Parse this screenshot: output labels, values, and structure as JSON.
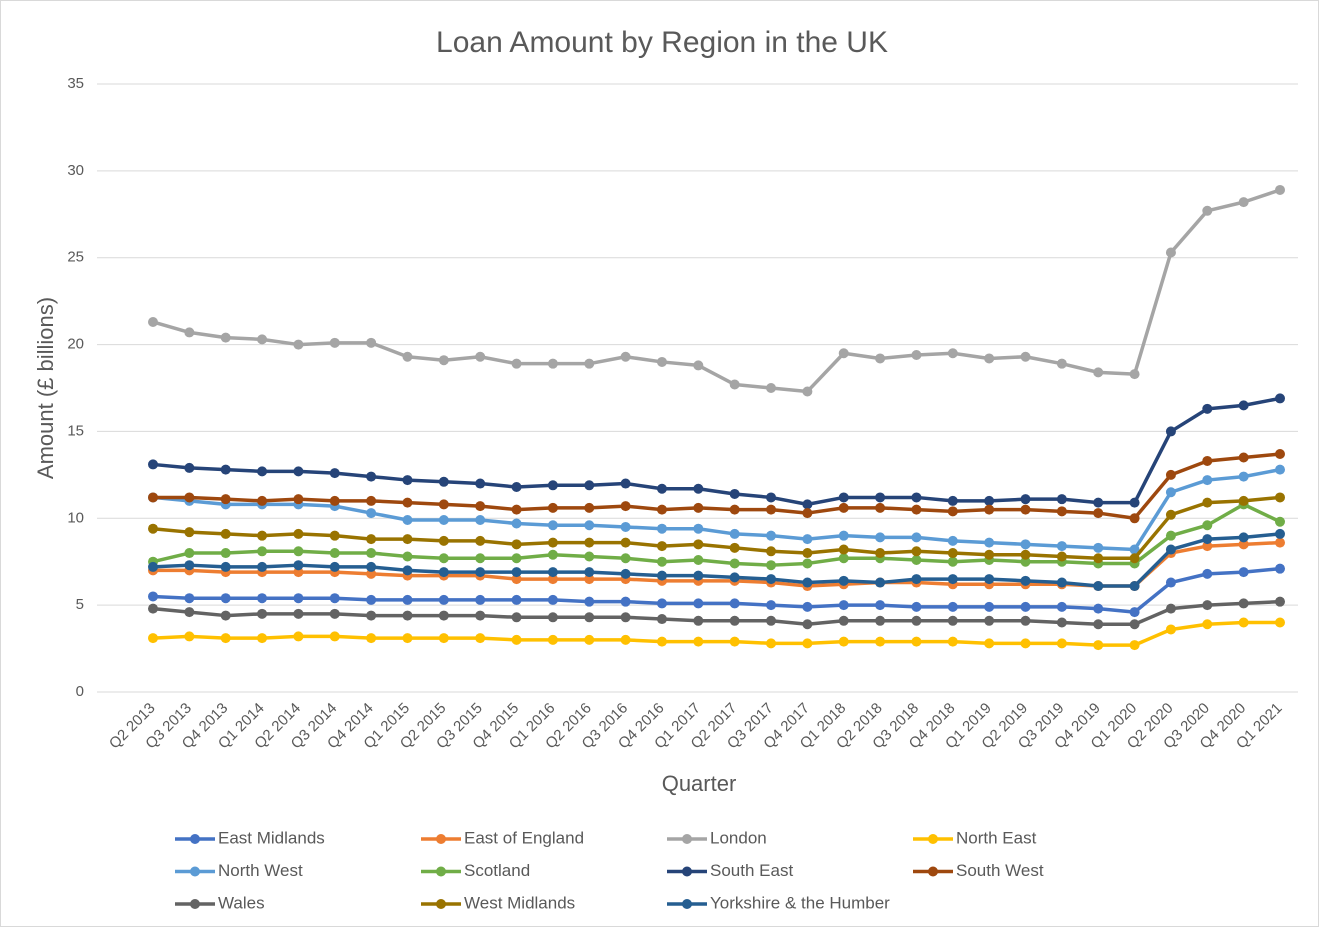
{
  "chart_data": {
    "type": "line",
    "title": "Loan Amount by Region in the UK",
    "x_label": "Quarter",
    "y_label": "Amount (£ billions)",
    "categories": [
      "Q2 2013",
      "Q3 2013",
      "Q4 2013",
      "Q1 2014",
      "Q2 2014",
      "Q3 2014",
      "Q4 2014",
      "Q1 2015",
      "Q2 2015",
      "Q3 2015",
      "Q4 2015",
      "Q1 2016",
      "Q2 2016",
      "Q3 2016",
      "Q4 2016",
      "Q1 2017",
      "Q2 2017",
      "Q3 2017",
      "Q4 2017",
      "Q1 2018",
      "Q2 2018",
      "Q3 2018",
      "Q4 2018",
      "Q1 2019",
      "Q2 2019",
      "Q3 2019",
      "Q4 2019",
      "Q1 2020",
      "Q2 2020",
      "Q3 2020",
      "Q4 2020",
      "Q1 2021"
    ],
    "ylim": [
      0,
      35
    ],
    "yticks": [
      0,
      5,
      10,
      15,
      20,
      25,
      30,
      35
    ],
    "grid": true,
    "legend": "bottom",
    "series": [
      {
        "name": "East Midlands",
        "color": "#4472c4",
        "values": [
          5.5,
          5.4,
          5.4,
          5.4,
          5.4,
          5.4,
          5.3,
          5.3,
          5.3,
          5.3,
          5.3,
          5.3,
          5.2,
          5.2,
          5.1,
          5.1,
          5.1,
          5.0,
          4.9,
          5.0,
          5.0,
          4.9,
          4.9,
          4.9,
          4.9,
          4.9,
          4.8,
          4.6,
          6.3,
          6.8,
          6.9,
          7.1
        ]
      },
      {
        "name": "East of England",
        "color": "#ed7d31",
        "values": [
          7.0,
          7.0,
          6.9,
          6.9,
          6.9,
          6.9,
          6.8,
          6.7,
          6.7,
          6.7,
          6.5,
          6.5,
          6.5,
          6.5,
          6.4,
          6.4,
          6.4,
          6.3,
          6.1,
          6.2,
          6.3,
          6.3,
          6.2,
          6.2,
          6.2,
          6.2,
          6.1,
          6.1,
          8.0,
          8.4,
          8.5,
          8.6
        ]
      },
      {
        "name": "London",
        "color": "#a5a5a5",
        "values": [
          21.3,
          20.7,
          20.4,
          20.3,
          20.0,
          20.1,
          20.1,
          19.3,
          19.1,
          19.3,
          18.9,
          18.9,
          18.9,
          19.3,
          19.0,
          18.8,
          17.7,
          17.5,
          17.3,
          19.5,
          19.2,
          19.4,
          19.5,
          19.2,
          19.3,
          18.9,
          18.4,
          18.3,
          25.3,
          27.7,
          28.2,
          28.9
        ]
      },
      {
        "name": "North East",
        "color": "#ffc000",
        "values": [
          3.1,
          3.2,
          3.1,
          3.1,
          3.2,
          3.2,
          3.1,
          3.1,
          3.1,
          3.1,
          3.0,
          3.0,
          3.0,
          3.0,
          2.9,
          2.9,
          2.9,
          2.8,
          2.8,
          2.9,
          2.9,
          2.9,
          2.9,
          2.8,
          2.8,
          2.8,
          2.7,
          2.7,
          3.6,
          3.9,
          4.0,
          4.0
        ]
      },
      {
        "name": "North West",
        "color": "#5b9bd5",
        "values": [
          11.2,
          11.0,
          10.8,
          10.8,
          10.8,
          10.7,
          10.3,
          9.9,
          9.9,
          9.9,
          9.7,
          9.6,
          9.6,
          9.5,
          9.4,
          9.4,
          9.1,
          9.0,
          8.8,
          9.0,
          8.9,
          8.9,
          8.7,
          8.6,
          8.5,
          8.4,
          8.3,
          8.2,
          11.5,
          12.2,
          12.4,
          12.8
        ]
      },
      {
        "name": "Scotland",
        "color": "#70ad47",
        "values": [
          7.5,
          8.0,
          8.0,
          8.1,
          8.1,
          8.0,
          8.0,
          7.8,
          7.7,
          7.7,
          7.7,
          7.9,
          7.8,
          7.7,
          7.5,
          7.6,
          7.4,
          7.3,
          7.4,
          7.7,
          7.7,
          7.6,
          7.5,
          7.6,
          7.5,
          7.5,
          7.4,
          7.4,
          9.0,
          9.6,
          10.8,
          9.8
        ]
      },
      {
        "name": "South East",
        "color": "#264478",
        "values": [
          13.1,
          12.9,
          12.8,
          12.7,
          12.7,
          12.6,
          12.4,
          12.2,
          12.1,
          12.0,
          11.8,
          11.9,
          11.9,
          12.0,
          11.7,
          11.7,
          11.4,
          11.2,
          10.8,
          11.2,
          11.2,
          11.2,
          11.0,
          11.0,
          11.1,
          11.1,
          10.9,
          10.9,
          15.0,
          16.3,
          16.5,
          16.9
        ]
      },
      {
        "name": "South West",
        "color": "#9e480e",
        "values": [
          11.2,
          11.2,
          11.1,
          11.0,
          11.1,
          11.0,
          11.0,
          10.9,
          10.8,
          10.7,
          10.5,
          10.6,
          10.6,
          10.7,
          10.5,
          10.6,
          10.5,
          10.5,
          10.3,
          10.6,
          10.6,
          10.5,
          10.4,
          10.5,
          10.5,
          10.4,
          10.3,
          10.0,
          12.5,
          13.3,
          13.5,
          13.7
        ]
      },
      {
        "name": "Wales",
        "color": "#636363",
        "values": [
          4.8,
          4.6,
          4.4,
          4.5,
          4.5,
          4.5,
          4.4,
          4.4,
          4.4,
          4.4,
          4.3,
          4.3,
          4.3,
          4.3,
          4.2,
          4.1,
          4.1,
          4.1,
          3.9,
          4.1,
          4.1,
          4.1,
          4.1,
          4.1,
          4.1,
          4.0,
          3.9,
          3.9,
          4.8,
          5.0,
          5.1,
          5.2
        ]
      },
      {
        "name": "West Midlands",
        "color": "#997300",
        "values": [
          9.4,
          9.2,
          9.1,
          9.0,
          9.1,
          9.0,
          8.8,
          8.8,
          8.7,
          8.7,
          8.5,
          8.6,
          8.6,
          8.6,
          8.4,
          8.5,
          8.3,
          8.1,
          8.0,
          8.2,
          8.0,
          8.1,
          8.0,
          7.9,
          7.9,
          7.8,
          7.7,
          7.7,
          10.2,
          10.9,
          11.0,
          11.2
        ]
      },
      {
        "name": "Yorkshire & the Humber",
        "color": "#255e91",
        "values": [
          7.2,
          7.3,
          7.2,
          7.2,
          7.3,
          7.2,
          7.2,
          7.0,
          6.9,
          6.9,
          6.9,
          6.9,
          6.9,
          6.8,
          6.7,
          6.7,
          6.6,
          6.5,
          6.3,
          6.4,
          6.3,
          6.5,
          6.5,
          6.5,
          6.4,
          6.3,
          6.1,
          6.1,
          8.2,
          8.8,
          8.9,
          9.1
        ]
      }
    ]
  }
}
